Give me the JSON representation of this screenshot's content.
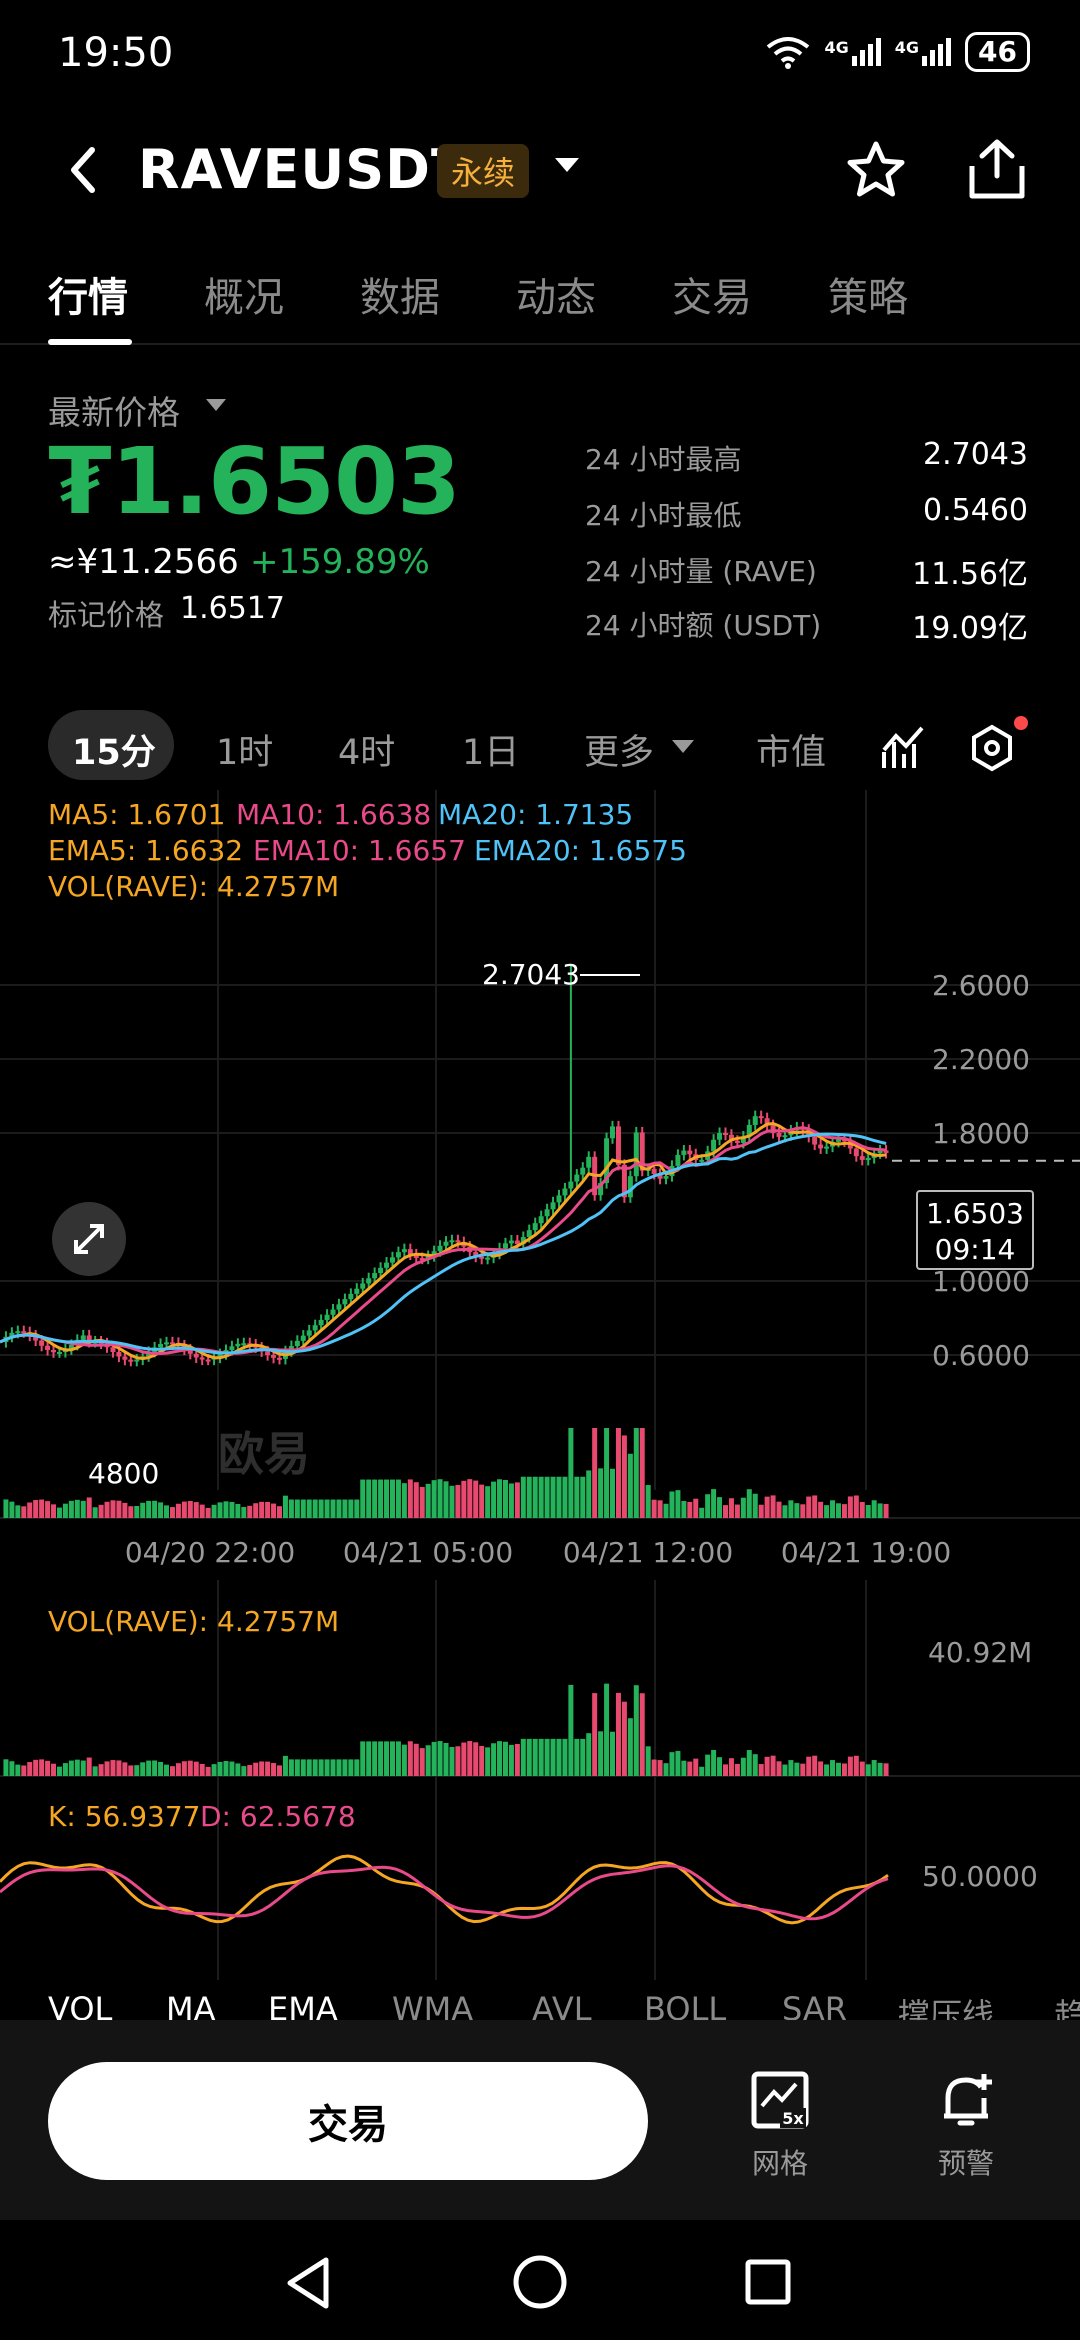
{
  "status_bar": {
    "time": "19:50",
    "network_1": "4G",
    "network_2": "4G",
    "battery": "46"
  },
  "header": {
    "symbol": "RAVEUSDT",
    "badge": "永续"
  },
  "tabs": [
    {
      "label": "行情",
      "active": true
    },
    {
      "label": "概况"
    },
    {
      "label": "数据"
    },
    {
      "label": "动态"
    },
    {
      "label": "交易"
    },
    {
      "label": "策略"
    }
  ],
  "price": {
    "label": "最新价格",
    "last": "₮1.6503",
    "cny": "≈¥11.2566",
    "change": "+159.89%",
    "mark_label": "标记价格",
    "mark_value": "1.6517"
  },
  "stats": [
    {
      "label": "24 小时最高",
      "value": "2.7043"
    },
    {
      "label": "24 小时最低",
      "value": "0.5460"
    },
    {
      "label": "24 小时量 (RAVE)",
      "value": "11.56亿"
    },
    {
      "label": "24 小时额 (USDT)",
      "value": "19.09亿"
    }
  ],
  "timeframes": {
    "tf_15m": "15分",
    "tf_1h": "1时",
    "tf_4h": "4时",
    "tf_1d": "1日",
    "more": "更多",
    "market_cap": "市值"
  },
  "legends": {
    "ma5": "MA5: 1.6701",
    "ma10": "MA10: 1.6638",
    "ma20": "MA20: 1.7135",
    "ema5": "EMA5: 1.6632",
    "ema10": "EMA10: 1.6657",
    "ema20": "EMA20: 1.6575",
    "vol_main": "VOL(RAVE): 4.2757M",
    "vol_sub": "VOL(RAVE): 4.2757M",
    "k": "K: 56.9377",
    "d": "D: 62.5678"
  },
  "chart_labels": {
    "high_marker": "2.7043",
    "low_marker": "4800",
    "current_price": "1.6503",
    "countdown": "09:14",
    "vol_axis_max": "40.92M",
    "kd_axis": "50.0000",
    "watermark": "欧易"
  },
  "chart_data": {
    "type": "candlestick",
    "y_ticks": [
      "2.6000",
      "2.2000",
      "1.8000",
      "1.0000",
      "0.6000"
    ],
    "x_ticks": [
      "04/20 22:00",
      "04/21 05:00",
      "04/21 12:00",
      "04/21 19:00"
    ],
    "ylim": [
      0.45,
      2.95
    ],
    "high": 2.7043,
    "current": 1.6503,
    "colors": {
      "up": "#24b35a",
      "down": "#e84a6f",
      "ma5": "#f5a623",
      "ma10": "#e84a8a",
      "ma20": "#4fc3f7"
    }
  },
  "bottom_indicators": [
    "VOL",
    "MA",
    "EMA",
    "WMA",
    "AVL",
    "BOLL",
    "SAR",
    "撑压线",
    "趋"
  ],
  "actions": {
    "trade": "交易",
    "grid": "网格",
    "grid_badge": "5x",
    "alert": "预警"
  }
}
